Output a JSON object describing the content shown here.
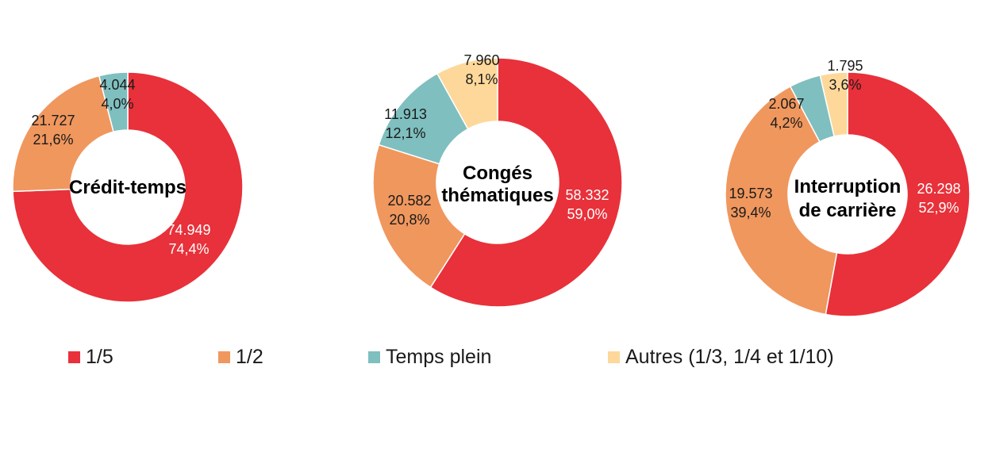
{
  "chart_data": [
    {
      "type": "pie",
      "title": "Crédit-temps",
      "categories": [
        "1/5",
        "1/2",
        "Temps plein",
        "Autres (1/3, 1/4 et 1/10)"
      ],
      "values": [
        74949,
        21727,
        4044,
        0
      ],
      "value_labels": [
        "74.949",
        "21.727",
        "4.044",
        ""
      ],
      "percent_labels": [
        "74,4%",
        "21,6%",
        "4,0%",
        ""
      ]
    },
    {
      "type": "pie",
      "title": "Congés thématiques",
      "categories": [
        "1/5",
        "1/2",
        "Temps plein",
        "Autres (1/3, 1/4 et 1/10)"
      ],
      "values": [
        58332,
        20582,
        11913,
        7960
      ],
      "value_labels": [
        "58.332",
        "20.582",
        "11.913",
        "7.960"
      ],
      "percent_labels": [
        "59,0%",
        "20,8%",
        "12,1%",
        "8,1%"
      ]
    },
    {
      "type": "pie",
      "title": "Interruption de carrière",
      "categories": [
        "1/5",
        "1/2",
        "Temps plein",
        "Autres (1/3, 1/4 et 1/10)"
      ],
      "values": [
        26298,
        19573,
        2067,
        1795
      ],
      "value_labels": [
        "26.298",
        "19.573",
        "2.067",
        "1.795"
      ],
      "percent_labels": [
        "52,9%",
        "39,4%",
        "4,2%",
        "3,6%"
      ]
    }
  ],
  "legend": {
    "items": [
      "1/5",
      "1/2",
      "Temps plein",
      "Autres (1/3, 1/4 et 1/10)"
    ],
    "placement": "bottom"
  },
  "colors": {
    "series": [
      "#e8313a",
      "#f0975e",
      "#7fbfbf",
      "#fdd89a"
    ],
    "label_on_dark": "#ffffff",
    "label_default": "#1a1a1a"
  }
}
